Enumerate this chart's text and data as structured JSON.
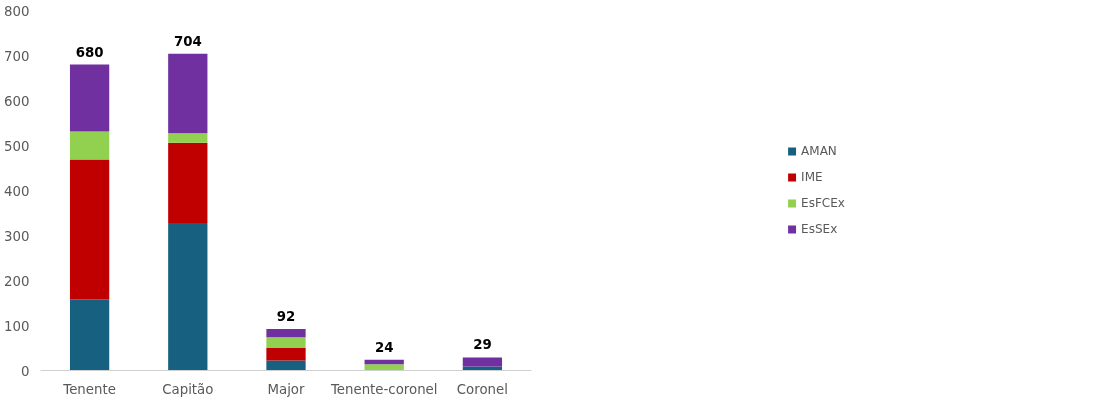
{
  "chart_data": {
    "type": "bar",
    "stacked": true,
    "categories": [
      "Tenente",
      "Capitão",
      "Major",
      "Tenente-coronel",
      "Coronel"
    ],
    "series": [
      {
        "name": "AMAN",
        "color": "#17607f",
        "values": [
          158,
          328,
          22,
          0,
          9
        ]
      },
      {
        "name": "IME",
        "color": "#c00000",
        "values": [
          311,
          178,
          28,
          0,
          0
        ]
      },
      {
        "name": "EsFCEx",
        "color": "#92d050",
        "values": [
          62,
          21,
          24,
          14,
          0
        ]
      },
      {
        "name": "EsSEx",
        "color": "#7030a0",
        "values": [
          149,
          177,
          18,
          10,
          20
        ]
      }
    ],
    "totals": [
      "680",
      "704",
      "92",
      "24",
      "29"
    ],
    "ylim": [
      0,
      800
    ],
    "yticks": [
      0,
      100,
      200,
      300,
      400,
      500,
      600,
      700,
      800
    ],
    "grid": false,
    "legend": "right"
  }
}
